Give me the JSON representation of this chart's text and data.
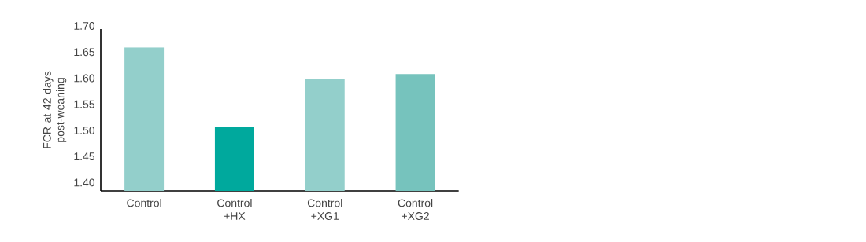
{
  "chart_data": {
    "type": "bar",
    "ylabel": "FCR at 42 days post-weaning",
    "categories": [
      "Control",
      "Control +HX",
      "Control +XG1",
      "Control +XG2"
    ],
    "values": [
      1.665,
      1.513,
      1.605,
      1.614
    ],
    "colors": [
      "#93cfcb",
      "#00a99d",
      "#93cfcb",
      "#76c3bd"
    ],
    "ylim": [
      1.39,
      1.7
    ],
    "yticks": [
      {
        "value": 1.4,
        "label": "1.40"
      },
      {
        "value": 1.45,
        "label": "1.45"
      },
      {
        "value": 1.5,
        "label": "1.50"
      },
      {
        "value": 1.55,
        "label": "1.55"
      },
      {
        "value": 1.6,
        "label": "1.60"
      },
      {
        "value": 1.65,
        "label": "1.65"
      },
      {
        "value": 1.7,
        "label": "1.70"
      }
    ]
  }
}
